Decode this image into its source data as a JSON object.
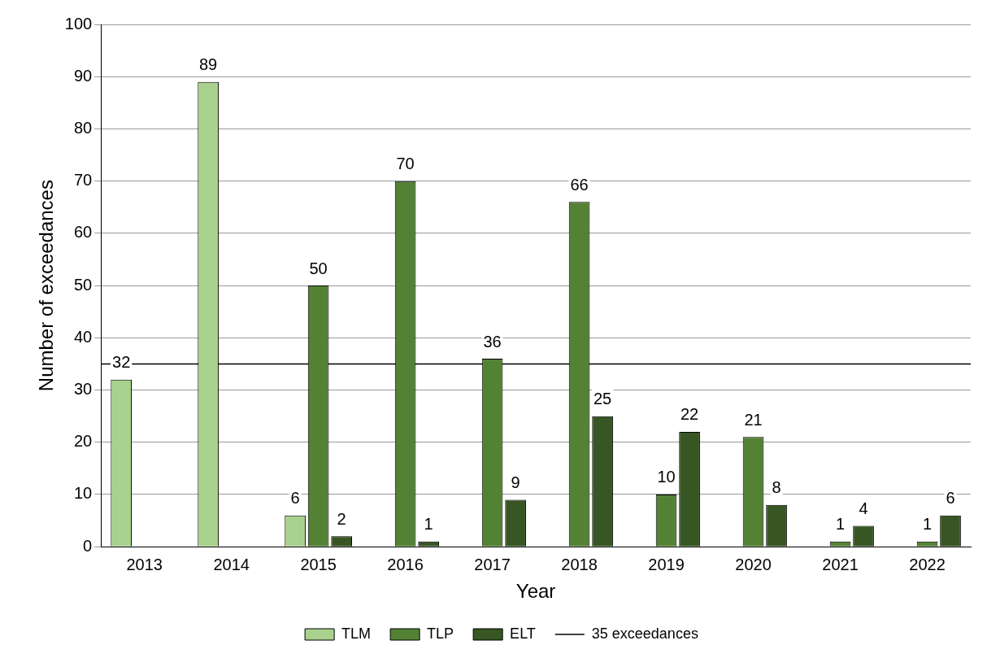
{
  "chart_data": {
    "type": "bar",
    "xlabel": "Year",
    "ylabel": "Number of exceedances",
    "categories": [
      "2013",
      "2014",
      "2015",
      "2016",
      "2017",
      "2018",
      "2019",
      "2020",
      "2021",
      "2022"
    ],
    "series": [
      {
        "name": "TLM",
        "color": "#a9d18e",
        "values": [
          32,
          89,
          6,
          null,
          null,
          null,
          null,
          null,
          null,
          null
        ]
      },
      {
        "name": "TLP",
        "color": "#548235",
        "values": [
          null,
          null,
          50,
          70,
          36,
          66,
          10,
          21,
          1,
          1
        ]
      },
      {
        "name": "ELT",
        "color": "#375623",
        "values": [
          null,
          null,
          2,
          1,
          9,
          25,
          22,
          8,
          4,
          6
        ]
      }
    ],
    "ylim": [
      0,
      100
    ],
    "yticks": [
      0,
      10,
      20,
      30,
      40,
      50,
      60,
      70,
      80,
      90,
      100
    ],
    "grid": "y",
    "legend": "bottom",
    "data_labels": true,
    "ref_lines": [
      {
        "axis": "y",
        "value": 35,
        "label": "35 exceedances",
        "color": "#000000"
      }
    ]
  }
}
